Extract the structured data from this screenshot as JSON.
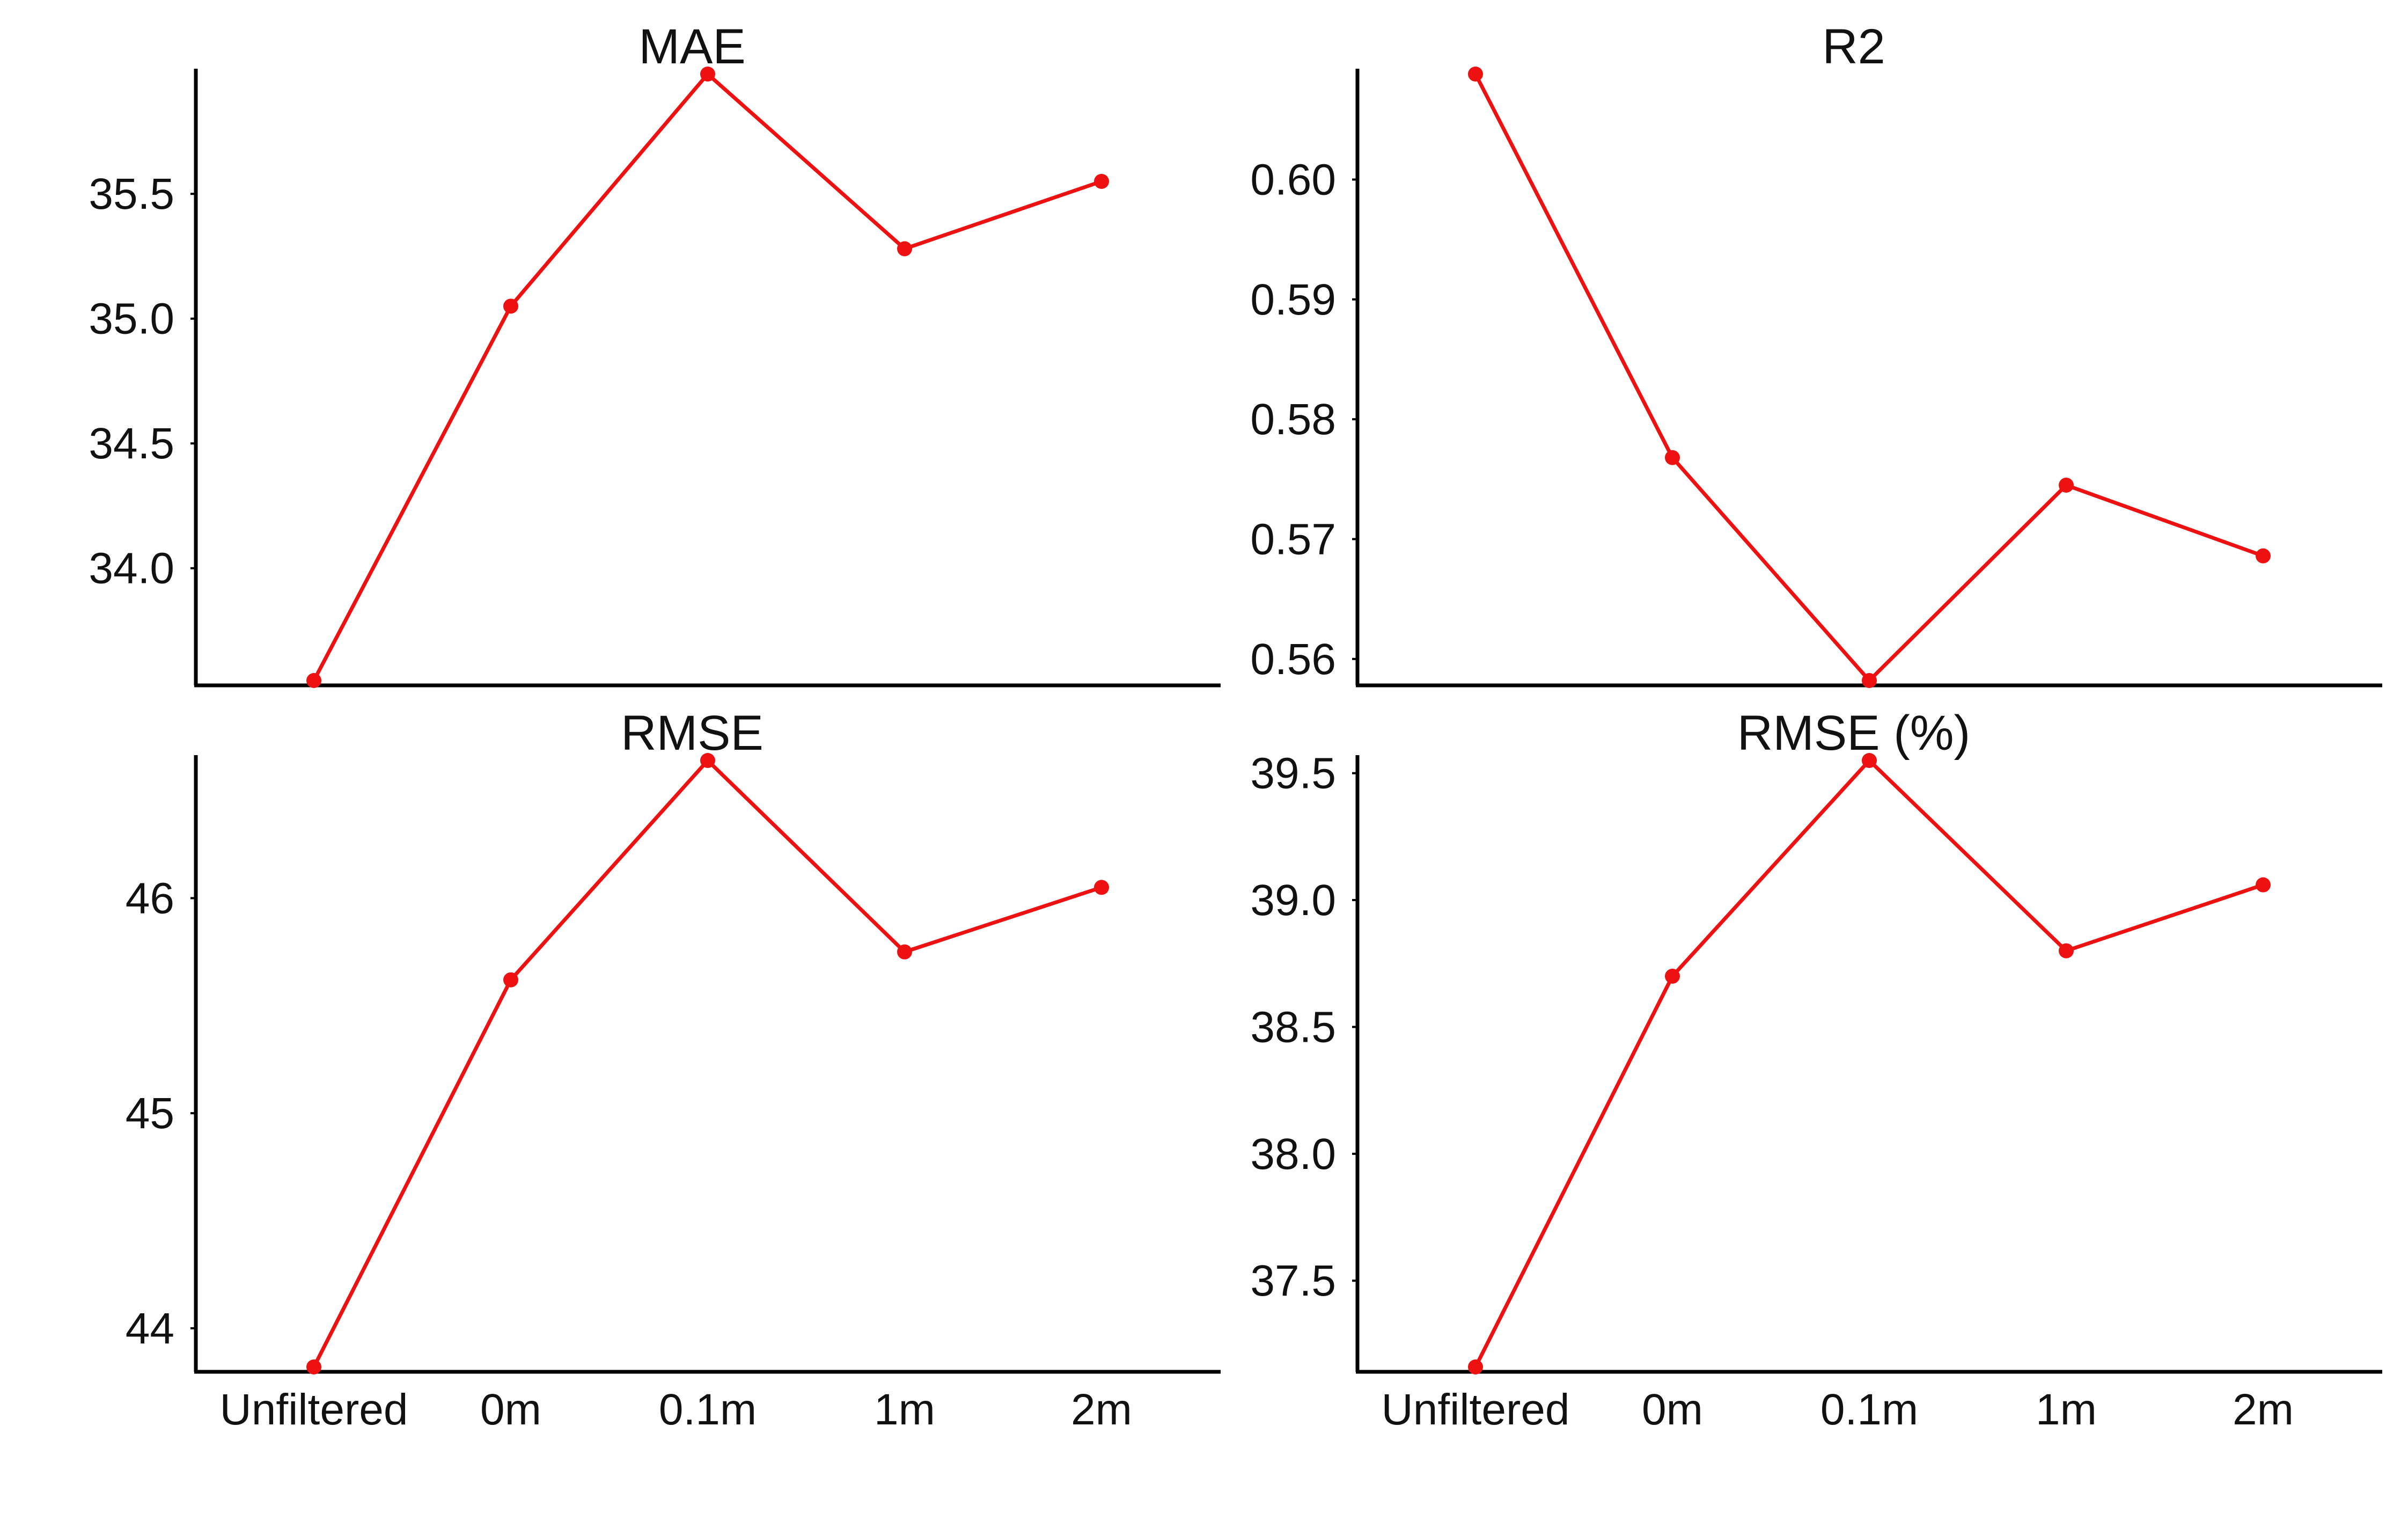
{
  "chart_data": [
    {
      "type": "line",
      "title": "MAE",
      "categories": [
        "Unfiltered",
        "0m",
        "0.1m",
        "1m",
        "2m"
      ],
      "values": [
        33.55,
        35.05,
        35.98,
        35.28,
        35.55
      ],
      "ylim": [
        33.55,
        35.98
      ],
      "yticks": [
        "34.0",
        "34.5",
        "35.0",
        "35.5"
      ],
      "show_x_tick_labels": false,
      "color": "#ee1111"
    },
    {
      "type": "line",
      "title": "R2",
      "categories": [
        "Unfiltered",
        "0m",
        "0.1m",
        "1m",
        "2m"
      ],
      "values": [
        0.6088,
        0.5768,
        0.5582,
        0.5745,
        0.5686
      ],
      "ylim": [
        0.5582,
        0.6088
      ],
      "yticks": [
        "0.56",
        "0.57",
        "0.58",
        "0.59",
        "0.60"
      ],
      "show_x_tick_labels": false,
      "color": "#ee1111"
    },
    {
      "type": "line",
      "title": "RMSE",
      "categories": [
        "Unfiltered",
        "0m",
        "0.1m",
        "1m",
        "2m"
      ],
      "values": [
        43.82,
        45.62,
        46.64,
        45.75,
        46.05
      ],
      "ylim": [
        43.82,
        46.64
      ],
      "yticks": [
        "44",
        "45",
        "46"
      ],
      "show_x_tick_labels": true,
      "color": "#ee1111"
    },
    {
      "type": "line",
      "title": "RMSE (%)",
      "categories": [
        "Unfiltered",
        "0m",
        "0.1m",
        "1m",
        "2m"
      ],
      "values": [
        37.16,
        38.7,
        39.55,
        38.8,
        39.06
      ],
      "ylim": [
        37.16,
        39.55
      ],
      "yticks": [
        "37.5",
        "38.0",
        "38.5",
        "39.0",
        "39.5"
      ],
      "show_x_tick_labels": true,
      "color": "#ee1111"
    }
  ]
}
